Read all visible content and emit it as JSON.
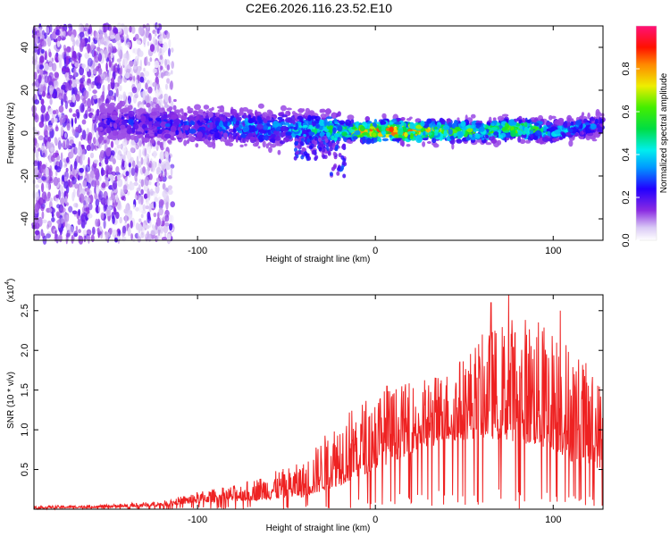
{
  "title": "C2E6.2026.116.23.52.E10",
  "chart_data": [
    {
      "type": "heatmap",
      "xlabel": "Height of straight line (km)",
      "ylabel": "Frequency (Hz)",
      "xlim": [
        -192,
        128
      ],
      "ylim": [
        -50,
        50
      ],
      "xticks": [
        -100,
        0,
        100
      ],
      "xtick_labels": [
        "-100",
        "0",
        "100"
      ],
      "yticks": [
        40,
        20,
        0,
        -20,
        -40
      ],
      "ytick_labels": [
        "40",
        "20",
        "0",
        "-20",
        "-40"
      ],
      "colorbar": {
        "label": "Normalized spectral amplitude",
        "range": [
          0,
          1
        ],
        "ticks": [
          0.0,
          0.2,
          0.4,
          0.6,
          0.8
        ],
        "tick_labels": [
          "0.0",
          "0.2",
          "0.4",
          "0.6",
          "0.8"
        ]
      },
      "ridge": {
        "description_points_x_km": [
          -150,
          -120,
          -100,
          -80,
          -60,
          -40,
          -20,
          0,
          20,
          40,
          60,
          80,
          100,
          120,
          128
        ],
        "center_freq_hz": [
          5,
          4,
          3,
          3,
          2,
          2,
          1,
          1,
          1,
          1,
          1,
          2,
          1,
          3,
          4
        ],
        "peak_amplitude": [
          0.25,
          0.3,
          0.3,
          0.4,
          0.4,
          0.45,
          0.6,
          0.9,
          0.9,
          0.7,
          0.6,
          0.7,
          0.5,
          0.35,
          0.3
        ]
      },
      "noise_region_x_km": [
        -192,
        -120
      ]
    },
    {
      "type": "line",
      "xlabel": "Height of straight line (km)",
      "ylabel": "SNR (10 * v/v)",
      "y_scale_label": "(x10",
      "y_scale_exponent": "4",
      "xlim": [
        -192,
        128
      ],
      "ylim": [
        0,
        2.7
      ],
      "xticks": [
        -100,
        0,
        100
      ],
      "xtick_labels": [
        "-100",
        "0",
        "100"
      ],
      "yticks": [
        0.5,
        1.0,
        1.5,
        2.0,
        2.5
      ],
      "ytick_labels": [
        "0.5",
        "1.0",
        "1.5",
        "2.0",
        "2.5"
      ],
      "color": "#ee2222",
      "envelope": {
        "x": [
          -192,
          -150,
          -120,
          -100,
          -80,
          -60,
          -40,
          -20,
          0,
          20,
          40,
          60,
          80,
          100,
          110,
          120,
          128
        ],
        "base": [
          0.01,
          0.02,
          0.04,
          0.08,
          0.1,
          0.12,
          0.15,
          0.3,
          0.5,
          0.7,
          0.85,
          0.9,
          0.85,
          0.75,
          0.6,
          0.55,
          0.5
        ],
        "peak": [
          0.04,
          0.06,
          0.1,
          0.22,
          0.3,
          0.45,
          0.6,
          1.2,
          1.5,
          1.6,
          1.75,
          2.2,
          2.5,
          2.3,
          2.1,
          1.8,
          1.6
        ]
      },
      "spikes": [
        {
          "x": 6.5,
          "y": 1.55
        },
        {
          "x": 65,
          "y": 2.6
        },
        {
          "x": 75,
          "y": 2.7
        },
        {
          "x": 104,
          "y": 2.5
        }
      ]
    }
  ]
}
